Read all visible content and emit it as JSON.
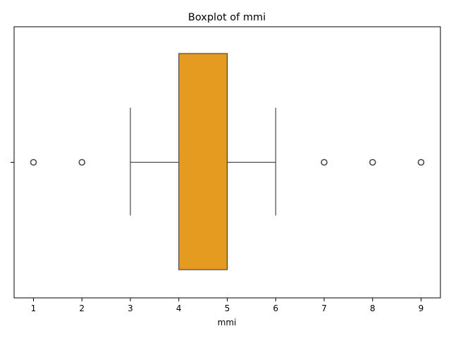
{
  "chart_data": {
    "type": "boxplot",
    "title": "Boxplot of mmi",
    "xlabel": "mmi",
    "ylabel": "",
    "xlim": [
      0.6,
      9.4
    ],
    "xticks": [
      1,
      2,
      3,
      4,
      5,
      6,
      7,
      8,
      9
    ],
    "orientation": "horizontal",
    "grid": false,
    "box": {
      "q1": 4,
      "median": 5,
      "q3": 5,
      "whisker_low": 3,
      "whisker_high": 6,
      "outliers": [
        1,
        2,
        7,
        8,
        9
      ]
    },
    "colors": {
      "box_fill": "#E49B1F",
      "box_edge": "#4a4a4a",
      "axis": "#000000"
    }
  }
}
